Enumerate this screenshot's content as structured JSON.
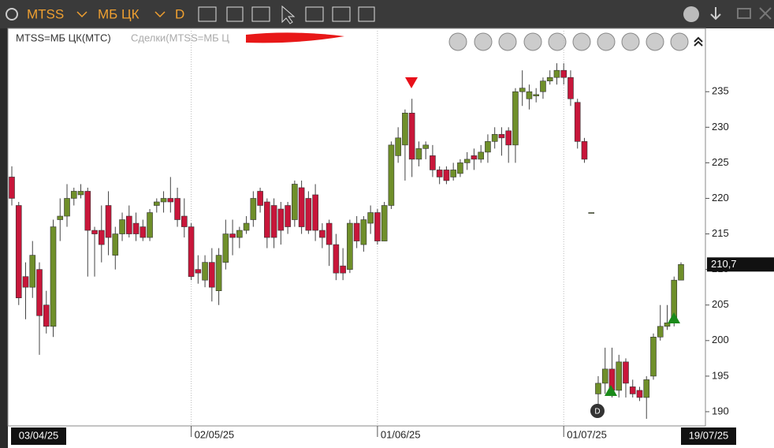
{
  "toolbar": {
    "ticker": "MTSS",
    "board": "МБ ЦК",
    "interval": "D"
  },
  "chart_data": {
    "type": "candlestick",
    "legend": [
      "MTSS=МБ ЦК(МТС)",
      "Сделки(MTSS=МБ Ц"
    ],
    "categories": [
      "03/04/25",
      null,
      null,
      null,
      null,
      null,
      null,
      null,
      null,
      null,
      null,
      null,
      null,
      null,
      null,
      null,
      null,
      null,
      null,
      null,
      null,
      null,
      null,
      null,
      null,
      null,
      "02/05/25",
      null,
      null,
      null,
      null,
      null,
      null,
      null,
      null,
      null,
      null,
      null,
      null,
      null,
      null,
      null,
      null,
      null,
      null,
      null,
      null,
      null,
      null,
      null,
      null,
      null,
      null,
      "01/06/25",
      null,
      null,
      null,
      null,
      null,
      null,
      null,
      null,
      null,
      null,
      null,
      null,
      null,
      null,
      null,
      null,
      null,
      null,
      null,
      null,
      null,
      null,
      null,
      null,
      null,
      null,
      "01/07/25",
      null,
      null,
      null,
      null,
      null,
      null,
      null,
      null,
      null,
      null,
      null,
      null,
      null,
      null,
      null,
      null,
      "19/07/25"
    ],
    "open": [
      223,
      219,
      209,
      207.5,
      210,
      205,
      202,
      217,
      217.5,
      220,
      220.5,
      221,
      215.5,
      215.5,
      219,
      212,
      215,
      217.5,
      216.5,
      216,
      214.5,
      219,
      219.5,
      220,
      220,
      217.5,
      216,
      210,
      208.5,
      211,
      207,
      211,
      215,
      214.5,
      215.5,
      217,
      221,
      219.5,
      219,
      218.5,
      219,
      217,
      221.5,
      220,
      220.5,
      215.5,
      216.5,
      213.5,
      210.5,
      210,
      216.5,
      213.5,
      216.5,
      218,
      214,
      219,
      226,
      227.5,
      232,
      225.5,
      227,
      226,
      224,
      224,
      223,
      223.5,
      225,
      226,
      225.5,
      226.5,
      228,
      229,
      229.5,
      227.5,
      235,
      234,
      234.4,
      235,
      236.5,
      237,
      238,
      237,
      233.5,
      228,
      218,
      192.5,
      194,
      196,
      193,
      197,
      193.5,
      193,
      192,
      195,
      200.5,
      202,
      202.5,
      208.5
    ],
    "high": [
      224.5,
      219.5,
      211,
      214,
      211,
      207,
      217,
      220,
      222,
      221.5,
      222,
      221.5,
      216,
      219,
      221,
      216,
      218,
      219,
      218,
      217,
      218.5,
      220,
      221,
      223,
      221.5,
      220,
      216.5,
      212,
      212,
      213,
      213,
      217,
      217,
      216,
      217.5,
      221,
      221.5,
      220,
      220,
      219.5,
      219.5,
      222.5,
      222.5,
      221,
      222,
      216.5,
      217,
      215,
      213,
      217,
      217.5,
      217.5,
      219,
      218.5,
      219.5,
      228,
      230,
      232.5,
      234,
      228,
      228,
      227.5,
      224.5,
      224.5,
      225,
      225.5,
      226.5,
      227,
      227.5,
      229,
      230,
      230,
      230,
      235.5,
      238,
      236,
      235.5,
      237,
      238,
      239,
      239,
      238,
      234,
      228.5,
      218,
      195,
      199,
      199,
      198,
      197.5,
      194.5,
      193.5,
      195,
      201,
      205,
      205,
      209,
      211
    ],
    "low": [
      219,
      205,
      203,
      206,
      198,
      201,
      200.5,
      214,
      216,
      219,
      220,
      209,
      209,
      211,
      212,
      210,
      214,
      214.5,
      214,
      214,
      214,
      218,
      218,
      218,
      216,
      214.5,
      208.5,
      208,
      207.5,
      205.5,
      205,
      210,
      212,
      213,
      215,
      216,
      218,
      213,
      213,
      213.5,
      215,
      216,
      215,
      215,
      214,
      213,
      210.5,
      208.5,
      208.5,
      209.5,
      213,
      212.5,
      215,
      213.5,
      214,
      218.5,
      225,
      222.5,
      223,
      224.5,
      225.5,
      223,
      222,
      222,
      222.5,
      223,
      224,
      224,
      225,
      225,
      227,
      226,
      225,
      225,
      233,
      232.5,
      233.5,
      234,
      236,
      236,
      236,
      233,
      227,
      225,
      218,
      189.5,
      192.5,
      192,
      192,
      192,
      192,
      191.5,
      189,
      194.5,
      200,
      201.5,
      202,
      208.5
    ],
    "close": [
      220,
      206,
      207.5,
      212,
      203.5,
      202,
      216,
      217.5,
      220,
      221,
      221,
      215.5,
      215,
      213.5,
      214.5,
      215,
      217,
      215,
      215,
      214.5,
      218,
      219.5,
      220,
      219.5,
      217,
      216,
      209,
      209.5,
      211,
      207.5,
      212,
      215,
      214.5,
      215.5,
      216.5,
      220,
      219,
      214.5,
      214.5,
      215.5,
      216,
      222,
      216,
      215.5,
      215.5,
      214.5,
      213.5,
      209.5,
      209.5,
      216.5,
      214,
      217,
      218,
      214,
      219,
      227.5,
      228.5,
      232,
      225.5,
      227,
      227.5,
      224,
      223,
      222.5,
      224,
      225,
      225.5,
      225.5,
      226.5,
      228,
      229,
      228.5,
      227.5,
      235,
      235.5,
      235,
      234.6,
      236.5,
      237,
      238,
      237,
      234,
      228,
      225.5,
      218,
      194,
      196,
      193,
      197,
      194,
      192.5,
      192,
      194.5,
      200.5,
      202,
      202.5,
      208.5,
      210.7
    ],
    "up_color": "#6f8f2a",
    "down_color": "#c8163a",
    "ylim": [
      188,
      243.9
    ],
    "yticks": [
      190,
      195,
      200,
      205,
      210,
      215,
      220,
      225,
      230,
      235
    ],
    "last_price": 210.7,
    "last_price_label": "210,7",
    "event_label": "D"
  }
}
